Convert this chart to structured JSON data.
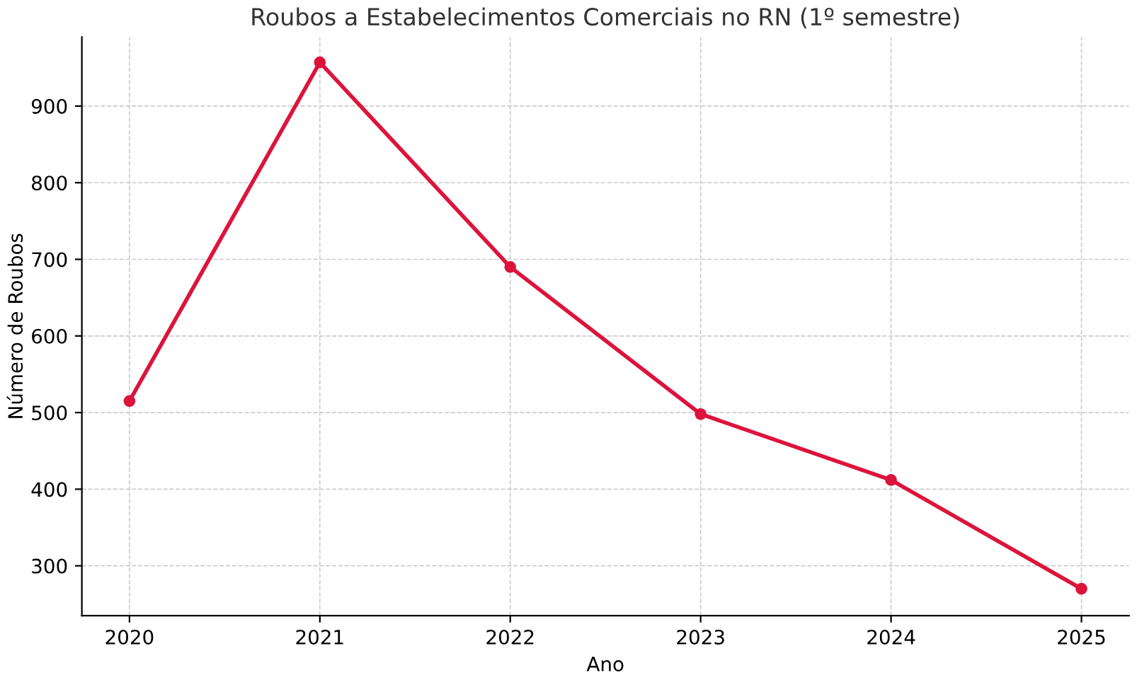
{
  "chart_data": {
    "type": "line",
    "title": "Roubos a Estabelecimentos Comerciais no RN (1º semestre)",
    "xlabel": "Ano",
    "ylabel": "Número de Roubos",
    "x": [
      2020,
      2021,
      2022,
      2023,
      2024,
      2025
    ],
    "series": [
      {
        "color": "#dc143c",
        "values": [
          515,
          957,
          690,
          498,
          412,
          270
        ]
      }
    ],
    "xlim": [
      2019.75,
      2025.25
    ],
    "xticks": [
      2020,
      2021,
      2022,
      2023,
      2024,
      2025
    ],
    "ylim": [
      235,
      990
    ],
    "yticks": [
      300,
      400,
      500,
      600,
      700,
      800,
      900
    ],
    "grid": true,
    "marker": "circle",
    "line_style": "solid"
  }
}
